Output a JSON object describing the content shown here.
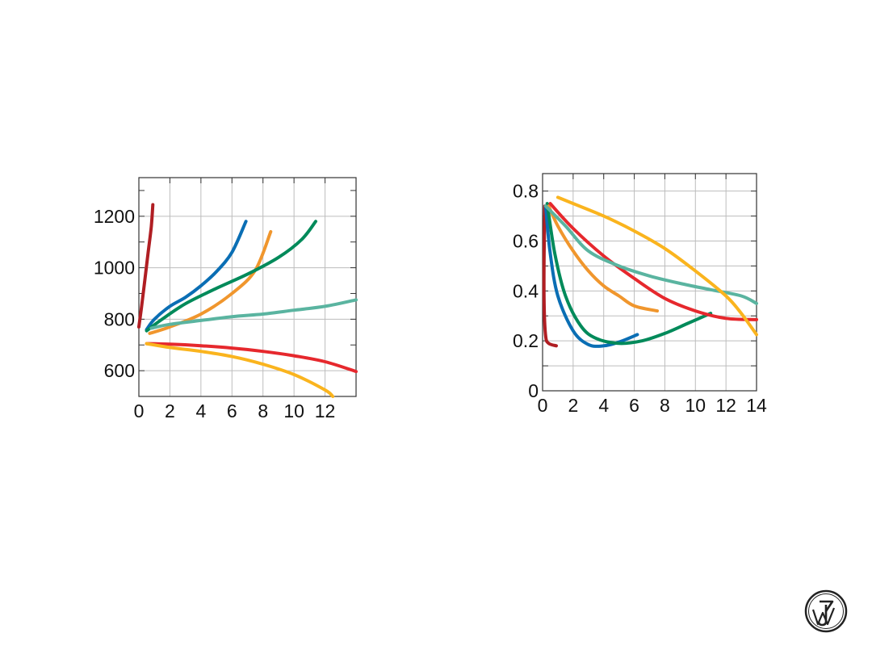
{
  "chart_data": [
    {
      "type": "line",
      "title": "",
      "xlabel": "",
      "ylabel": "",
      "xlim": [
        0,
        14
      ],
      "ylim": [
        500,
        1350
      ],
      "grid": true,
      "x_grid": [
        0,
        2,
        4,
        6,
        8,
        10,
        12,
        14
      ],
      "y_grid": [
        600,
        800,
        1000,
        1200
      ],
      "y_minor_ticks": [
        700,
        900,
        1100,
        1300
      ],
      "x_tick_labels": [
        {
          "value": 0,
          "label": "0"
        },
        {
          "value": 2,
          "label": "2"
        },
        {
          "value": 4,
          "label": "4"
        },
        {
          "value": 6,
          "label": "6"
        },
        {
          "value": 8,
          "label": "8"
        },
        {
          "value": 10,
          "label": "10"
        },
        {
          "value": 12,
          "label": "12"
        }
      ],
      "y_tick_labels": [
        {
          "value": 600,
          "label": "600"
        },
        {
          "value": 800,
          "label": "800"
        },
        {
          "value": 1000,
          "label": "1000"
        },
        {
          "value": 1200,
          "label": "1200"
        }
      ],
      "series": [
        {
          "name": "dark-red",
          "color": "#b01e23",
          "points": [
            [
              0.0,
              770
            ],
            [
              0.2,
              860
            ],
            [
              0.4,
              960
            ],
            [
              0.6,
              1060
            ],
            [
              0.8,
              1160
            ],
            [
              0.9,
              1245
            ]
          ]
        },
        {
          "name": "blue",
          "color": "#0a6eb4",
          "points": [
            [
              0.5,
              760
            ],
            [
              1,
              800
            ],
            [
              2,
              850
            ],
            [
              3,
              885
            ],
            [
              4,
              930
            ],
            [
              5,
              985
            ],
            [
              6,
              1060
            ],
            [
              6.9,
              1180
            ]
          ]
        },
        {
          "name": "orange",
          "color": "#f0962d",
          "points": [
            [
              0.7,
              745
            ],
            [
              2,
              770
            ],
            [
              4,
              820
            ],
            [
              6,
              900
            ],
            [
              7.5,
              990
            ],
            [
              8.5,
              1140
            ]
          ]
        },
        {
          "name": "green",
          "color": "#008a5a",
          "points": [
            [
              0.5,
              755
            ],
            [
              1.5,
              800
            ],
            [
              3,
              860
            ],
            [
              5,
              920
            ],
            [
              7,
              975
            ],
            [
              9,
              1040
            ],
            [
              10.5,
              1110
            ],
            [
              11.4,
              1180
            ]
          ]
        },
        {
          "name": "teal",
          "color": "#5ab4a0",
          "points": [
            [
              0.8,
              765
            ],
            [
              2,
              780
            ],
            [
              4,
              795
            ],
            [
              6,
              810
            ],
            [
              8,
              820
            ],
            [
              10,
              835
            ],
            [
              12,
              850
            ],
            [
              14,
              875
            ]
          ]
        },
        {
          "name": "red",
          "color": "#e6282d",
          "points": [
            [
              0.5,
              705
            ],
            [
              2,
              703
            ],
            [
              4,
              697
            ],
            [
              6,
              688
            ],
            [
              8,
              675
            ],
            [
              10,
              658
            ],
            [
              12,
              635
            ],
            [
              14,
              597
            ]
          ]
        },
        {
          "name": "yellow",
          "color": "#fab41e",
          "points": [
            [
              0.5,
              705
            ],
            [
              2,
              690
            ],
            [
              4,
              675
            ],
            [
              6,
              655
            ],
            [
              8,
              625
            ],
            [
              10,
              585
            ],
            [
              12,
              525
            ],
            [
              12.5,
              500
            ]
          ]
        }
      ]
    },
    {
      "type": "line",
      "title": "",
      "xlabel": "",
      "ylabel": "",
      "xlim": [
        0,
        14
      ],
      "ylim": [
        0,
        0.87
      ],
      "grid": true,
      "x_grid": [
        0,
        2,
        4,
        6,
        8,
        10,
        12,
        14
      ],
      "y_grid": [
        0.1,
        0.2,
        0.3,
        0.4,
        0.5,
        0.6,
        0.7,
        0.8
      ],
      "x_tick_labels": [
        {
          "value": 0,
          "label": "0"
        },
        {
          "value": 2,
          "label": "2"
        },
        {
          "value": 4,
          "label": "4"
        },
        {
          "value": 6,
          "label": "6"
        },
        {
          "value": 8,
          "label": "8"
        },
        {
          "value": 10,
          "label": "10"
        },
        {
          "value": 12,
          "label": "12"
        },
        {
          "value": 14,
          "label": "14"
        }
      ],
      "y_tick_labels": [
        {
          "value": 0,
          "label": "0"
        },
        {
          "value": 0.2,
          "label": "0.2"
        },
        {
          "value": 0.4,
          "label": "0.4"
        },
        {
          "value": 0.6,
          "label": "0.6"
        },
        {
          "value": 0.8,
          "label": "0.8"
        }
      ],
      "series": [
        {
          "name": "dark-red",
          "color": "#b01e23",
          "points": [
            [
              0.15,
              0.74
            ],
            [
              0.1,
              0.55
            ],
            [
              0.1,
              0.35
            ],
            [
              0.2,
              0.22
            ],
            [
              0.4,
              0.19
            ],
            [
              0.9,
              0.18
            ]
          ]
        },
        {
          "name": "blue",
          "color": "#0a6eb4",
          "points": [
            [
              0.2,
              0.74
            ],
            [
              0.5,
              0.55
            ],
            [
              1,
              0.38
            ],
            [
              2,
              0.24
            ],
            [
              3,
              0.185
            ],
            [
              4,
              0.18
            ],
            [
              5,
              0.195
            ],
            [
              6.2,
              0.225
            ]
          ]
        },
        {
          "name": "green",
          "color": "#008a5a",
          "points": [
            [
              0.3,
              0.75
            ],
            [
              0.8,
              0.55
            ],
            [
              1.5,
              0.38
            ],
            [
              2.5,
              0.26
            ],
            [
              3.5,
              0.21
            ],
            [
              5,
              0.19
            ],
            [
              6.5,
              0.2
            ],
            [
              8,
              0.23
            ],
            [
              9.5,
              0.27
            ],
            [
              11,
              0.31
            ]
          ]
        },
        {
          "name": "orange",
          "color": "#f0962d",
          "points": [
            [
              0.4,
              0.74
            ],
            [
              1,
              0.66
            ],
            [
              2,
              0.56
            ],
            [
              3,
              0.48
            ],
            [
              4,
              0.42
            ],
            [
              5,
              0.38
            ],
            [
              6,
              0.34
            ],
            [
              7.5,
              0.32
            ]
          ]
        },
        {
          "name": "red",
          "color": "#e6282d",
          "points": [
            [
              0.5,
              0.75
            ],
            [
              2,
              0.65
            ],
            [
              4,
              0.54
            ],
            [
              6,
              0.45
            ],
            [
              8,
              0.37
            ],
            [
              10,
              0.32
            ],
            [
              12,
              0.29
            ],
            [
              14,
              0.285
            ]
          ]
        },
        {
          "name": "teal",
          "color": "#5ab4a0",
          "points": [
            [
              0.2,
              0.74
            ],
            [
              1.5,
              0.66
            ],
            [
              3,
              0.56
            ],
            [
              5,
              0.5
            ],
            [
              7,
              0.46
            ],
            [
              9,
              0.43
            ],
            [
              11,
              0.405
            ],
            [
              13,
              0.38
            ],
            [
              14,
              0.35
            ]
          ]
        },
        {
          "name": "yellow",
          "color": "#fab41e",
          "points": [
            [
              1,
              0.775
            ],
            [
              2,
              0.75
            ],
            [
              4,
              0.7
            ],
            [
              6,
              0.64
            ],
            [
              8,
              0.57
            ],
            [
              10,
              0.48
            ],
            [
              12,
              0.38
            ],
            [
              13,
              0.31
            ],
            [
              14,
              0.225
            ]
          ]
        }
      ]
    }
  ],
  "logo": {
    "name": "Wiley",
    "text": "JW"
  }
}
